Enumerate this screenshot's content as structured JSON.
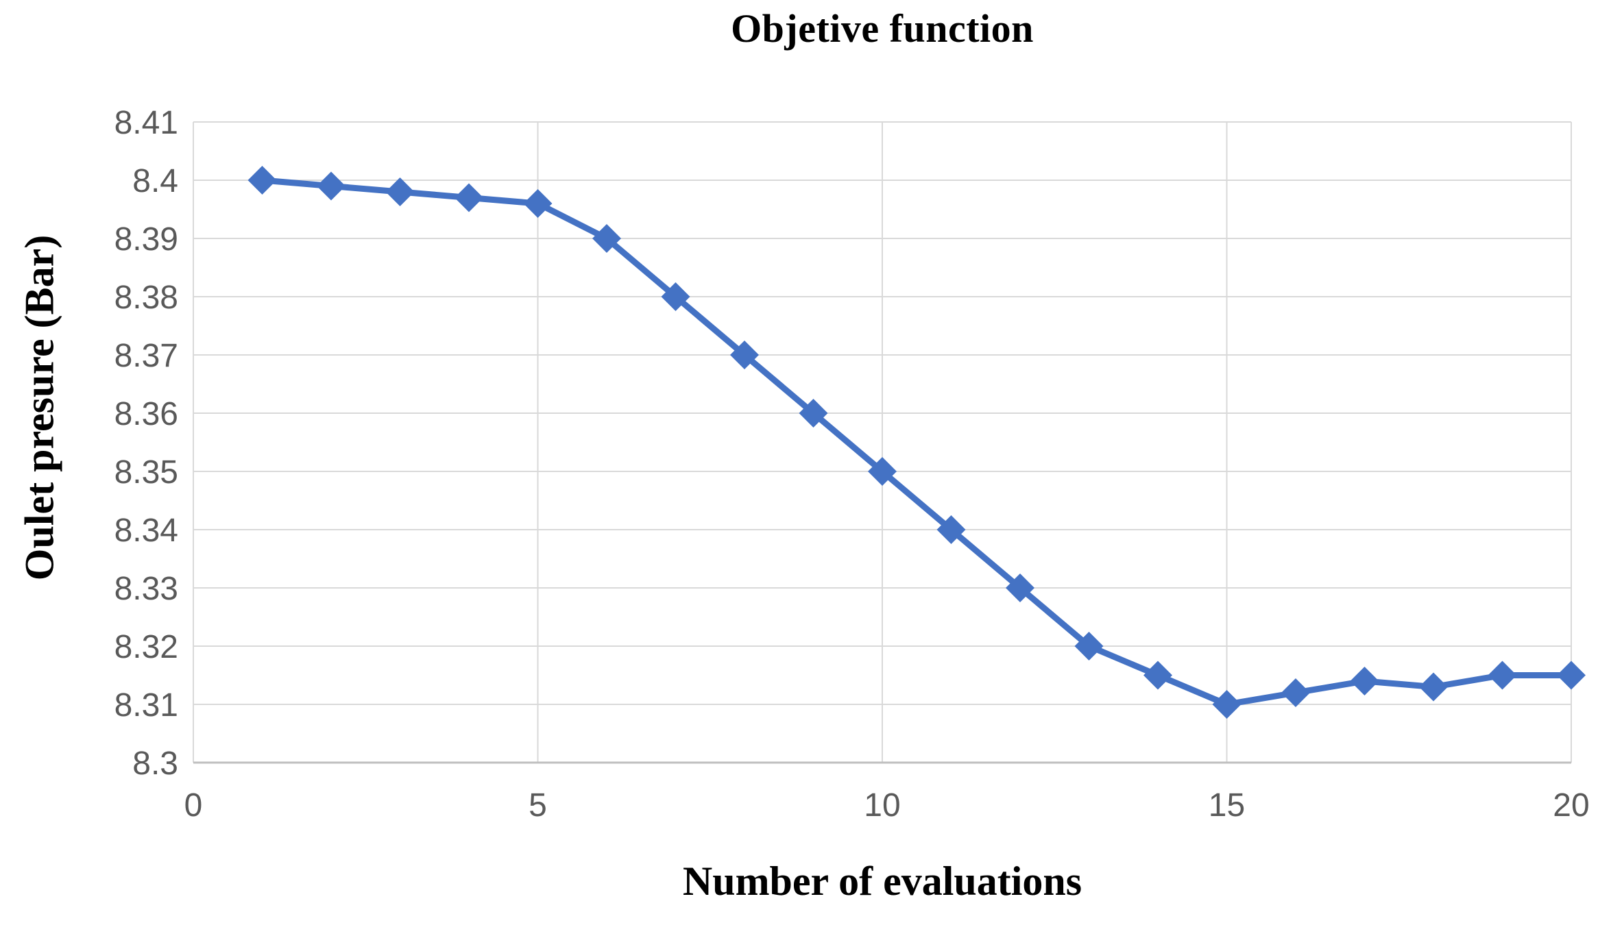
{
  "chart_data": {
    "type": "line",
    "title": "Objetive function",
    "xlabel": "Number of evaluations",
    "ylabel": "Oulet presure (Bar)",
    "x": [
      1,
      2,
      3,
      4,
      5,
      6,
      7,
      8,
      9,
      10,
      11,
      12,
      13,
      14,
      15,
      16,
      17,
      18,
      19,
      20
    ],
    "series": [
      {
        "name": "Objetive function",
        "marker": "diamond",
        "color": "#4472C4",
        "values": [
          8.4,
          8.399,
          8.398,
          8.397,
          8.396,
          8.39,
          8.38,
          8.37,
          8.36,
          8.35,
          8.34,
          8.33,
          8.32,
          8.315,
          8.31,
          8.312,
          8.314,
          8.313,
          8.315,
          8.315
        ]
      }
    ],
    "xlim": [
      0,
      20
    ],
    "ylim": [
      8.3,
      8.41
    ],
    "grid": true,
    "legend_position": "none",
    "x_ticks": [
      {
        "value": 0,
        "label": "0"
      },
      {
        "value": 5,
        "label": "5"
      },
      {
        "value": 10,
        "label": "10"
      },
      {
        "value": 15,
        "label": "15"
      },
      {
        "value": 20,
        "label": "20"
      }
    ],
    "y_ticks": [
      {
        "value": 8.3,
        "label": "8.3"
      },
      {
        "value": 8.31,
        "label": "8.31"
      },
      {
        "value": 8.32,
        "label": "8.32"
      },
      {
        "value": 8.33,
        "label": "8.33"
      },
      {
        "value": 8.34,
        "label": "8.34"
      },
      {
        "value": 8.35,
        "label": "8.35"
      },
      {
        "value": 8.36,
        "label": "8.36"
      },
      {
        "value": 8.37,
        "label": "8.37"
      },
      {
        "value": 8.38,
        "label": "8.38"
      },
      {
        "value": 8.39,
        "label": "8.39"
      },
      {
        "value": 8.4,
        "label": "8.4"
      },
      {
        "value": 8.41,
        "label": "8.41"
      }
    ],
    "colors": {
      "series": "#4472C4",
      "gridline": "#D9D9D9",
      "axis_line": "#BFBFBF",
      "tick_label": "#595959",
      "title_text": "#000000",
      "background": "#FFFFFF"
    }
  }
}
